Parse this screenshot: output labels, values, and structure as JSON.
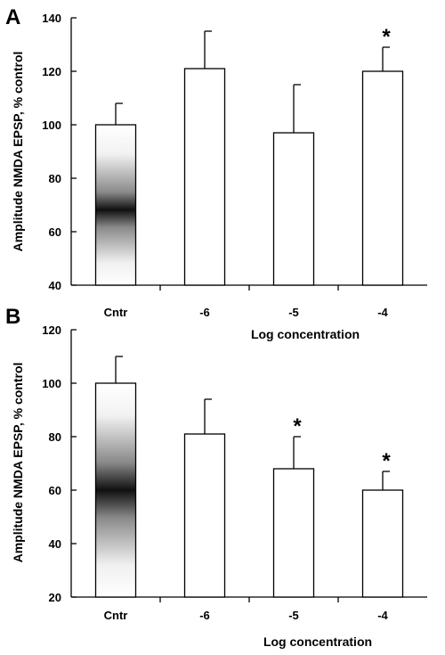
{
  "chart_data": [
    {
      "type": "bar",
      "panel_label": "A",
      "categories": [
        "Cntr",
        "-6",
        "-5",
        "-4"
      ],
      "values": [
        100,
        121,
        97,
        120
      ],
      "errors": [
        8,
        14,
        18,
        9
      ],
      "significance": [
        "",
        "",
        "",
        "*"
      ],
      "ylabel": "Amplitude NMDA EPSP, % control",
      "xlabel": "Log concentration",
      "ylim": [
        40,
        140
      ],
      "yticks": [
        40,
        60,
        80,
        100,
        120,
        140
      ],
      "gradient_bar_index": 0,
      "gradient_center_value": 70
    },
    {
      "type": "bar",
      "panel_label": "B",
      "categories": [
        "Cntr",
        "-6",
        "-5",
        "-4"
      ],
      "values": [
        100,
        81,
        68,
        60
      ],
      "errors": [
        10,
        13,
        12,
        7
      ],
      "significance": [
        "",
        "",
        "*",
        "*"
      ],
      "ylabel": "Amplitude NMDA EPSP, % control",
      "xlabel": "Log concentration",
      "ylim": [
        20,
        120
      ],
      "yticks": [
        20,
        40,
        60,
        80,
        100,
        120
      ],
      "gradient_bar_index": 0,
      "gradient_center_value": 60
    }
  ]
}
